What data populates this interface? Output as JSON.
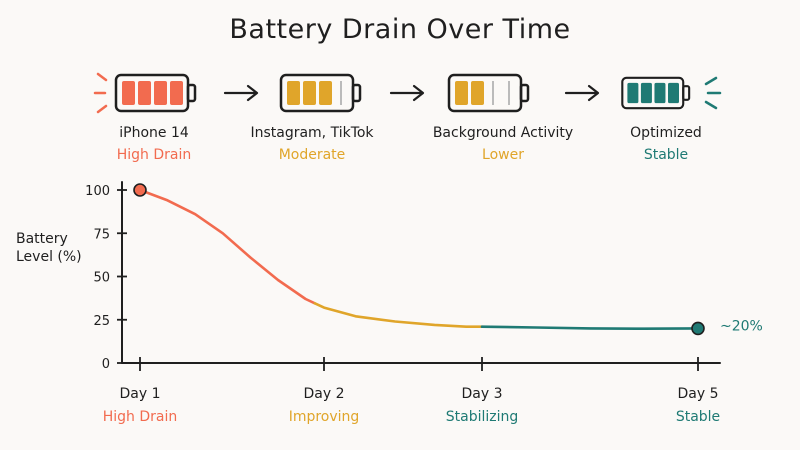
{
  "title": "Battery Drain Over Time",
  "colors": {
    "high": "#f26b4f",
    "moderate": "#e0a52a",
    "stable": "#1f7a74",
    "ink": "#1f1f1f"
  },
  "stages": [
    {
      "name": "iPhone 14",
      "status": "High Drain",
      "bars_filled": 4,
      "color": "#f26b4f",
      "icon": "high-drain-battery-icon"
    },
    {
      "name": "Instagram, TikTok",
      "status": "Moderate",
      "bars_filled": 3,
      "color": "#e0a52a",
      "icon": "moderate-battery-icon"
    },
    {
      "name": "Background Activity",
      "status": "Lower",
      "bars_filled": 2,
      "color": "#e0a52a",
      "icon": "lower-battery-icon"
    },
    {
      "name": "Optimized",
      "status": "Stable",
      "bars_filled": 4,
      "color": "#1f7a74",
      "icon": "stable-battery-icon"
    }
  ],
  "chart_data": {
    "type": "line",
    "ylabel_lines": [
      "Battery",
      "Level (%)"
    ],
    "ylim": [
      0,
      100
    ],
    "y_ticks": [
      0,
      25,
      50,
      75,
      100
    ],
    "x_ticks": [
      {
        "label": "Day 1",
        "status": "High Drain",
        "pos": 1,
        "color": "#f26b4f"
      },
      {
        "label": "Day 2",
        "status": "Improving",
        "pos": 2,
        "color": "#e0a52a"
      },
      {
        "label": "Day 3",
        "status": "Stabilizing",
        "pos": 3,
        "color": "#1f7a74"
      },
      {
        "label": "Day 5",
        "status": "Stable",
        "pos": 5,
        "color": "#1f7a74"
      }
    ],
    "points": [
      {
        "x": 1.0,
        "y": 100
      },
      {
        "x": 1.15,
        "y": 94
      },
      {
        "x": 1.3,
        "y": 86
      },
      {
        "x": 1.45,
        "y": 75
      },
      {
        "x": 1.6,
        "y": 61
      },
      {
        "x": 1.75,
        "y": 48
      },
      {
        "x": 1.9,
        "y": 37
      },
      {
        "x": 2.0,
        "y": 32
      },
      {
        "x": 2.2,
        "y": 27
      },
      {
        "x": 2.45,
        "y": 24
      },
      {
        "x": 2.7,
        "y": 22
      },
      {
        "x": 2.9,
        "y": 21
      },
      {
        "x": 3.0,
        "y": 21
      },
      {
        "x": 3.5,
        "y": 20.5
      },
      {
        "x": 4.0,
        "y": 20
      },
      {
        "x": 4.5,
        "y": 19.8
      },
      {
        "x": 5.0,
        "y": 20
      }
    ],
    "segments": [
      {
        "from": 1.0,
        "to": 1.95,
        "color": "#f26b4f"
      },
      {
        "from": 1.95,
        "to": 3.0,
        "color": "#e0a52a"
      },
      {
        "from": 3.0,
        "to": 5.0,
        "color": "#1f7a74"
      }
    ],
    "start_marker_color": "#f26b4f",
    "end_marker_color": "#1f7a74",
    "end_label": "~20%"
  }
}
